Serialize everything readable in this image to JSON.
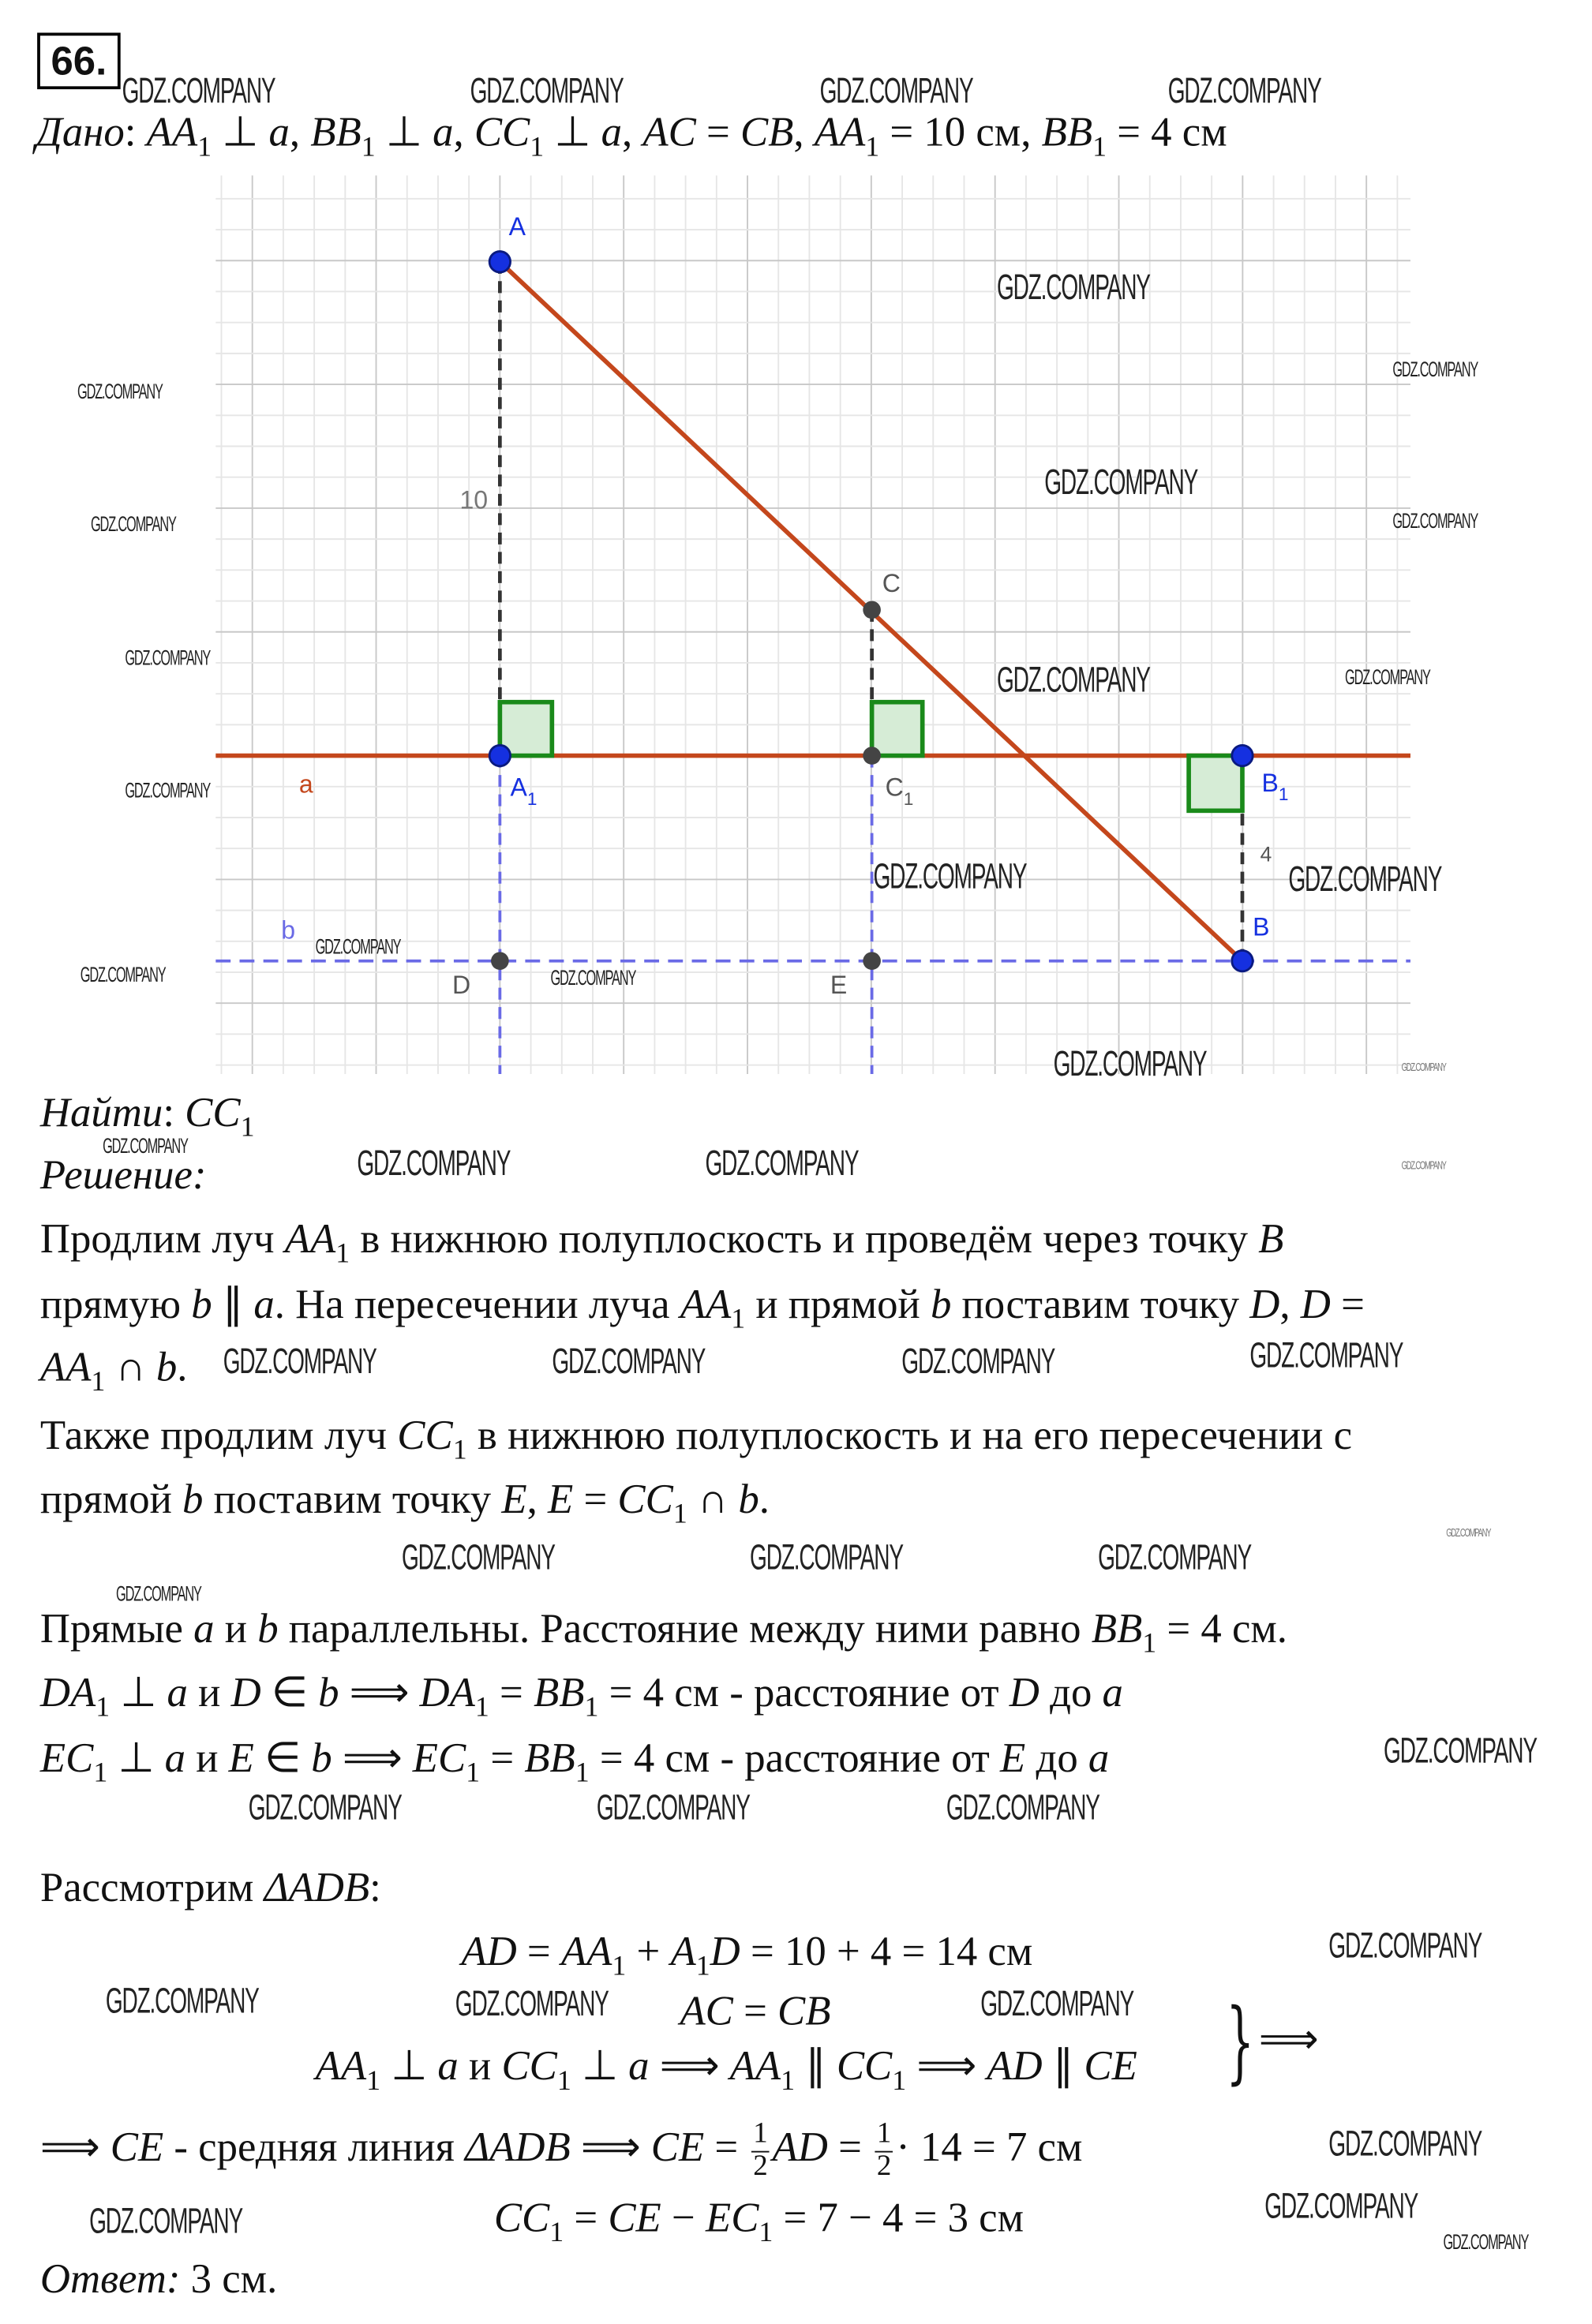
{
  "problem_number": "66.",
  "watermark": "GDZ.COMPANY",
  "given": [
    [
      "Дано",
      "i"
    ],
    [
      ": ",
      ""
    ],
    [
      "AA",
      "i"
    ],
    [
      "1",
      "sub"
    ],
    [
      " ⊥ ",
      ""
    ],
    [
      "a",
      "i"
    ],
    [
      ", ",
      ""
    ],
    [
      "BB",
      "i"
    ],
    [
      "1",
      "sub"
    ],
    [
      " ⊥ ",
      ""
    ],
    [
      "a",
      "i"
    ],
    [
      ", ",
      ""
    ],
    [
      "CC",
      "i"
    ],
    [
      "1",
      "sub"
    ],
    [
      " ⊥ ",
      ""
    ],
    [
      "a",
      "i"
    ],
    [
      ", ",
      ""
    ],
    [
      "AC",
      "i"
    ],
    [
      " = ",
      ""
    ],
    [
      "CB",
      "i"
    ],
    [
      ", ",
      ""
    ],
    [
      "AA",
      "i"
    ],
    [
      "1",
      "sub"
    ],
    [
      " = 10 см, ",
      ""
    ],
    [
      "BB",
      "i"
    ],
    [
      "1",
      "sub"
    ],
    [
      " = 4 см",
      ""
    ]
  ],
  "diagram": {
    "labels": {
      "A": "A",
      "A1": "A",
      "A1_sub": "1",
      "C": "C",
      "C1": "C",
      "C1_sub": "1",
      "B1": "B",
      "B1_sub": "1",
      "B": "B",
      "D": "D",
      "E": "E",
      "a": "a",
      "b": "b",
      "len10": "10",
      "len4": "4"
    },
    "colors": {
      "main_line": "#c4471c",
      "points_blue": "#1530e0",
      "points_gray": "#444444",
      "right_angle": "#1a8a1a",
      "line_b": "#6a6ae6"
    }
  },
  "find": [
    [
      "Найти",
      "i"
    ],
    [
      ": ",
      ""
    ],
    [
      "CC",
      "i"
    ],
    [
      "1",
      "sub"
    ]
  ],
  "solution_label": [
    [
      "Решение:",
      "i"
    ]
  ],
  "paragraphs": [
    [
      [
        "Продлим луч ",
        ""
      ],
      [
        "AA",
        "i"
      ],
      [
        "1",
        "sub"
      ],
      [
        " в нижнюю полуплоскость и проведём через точку ",
        ""
      ],
      [
        "B",
        "i"
      ]
    ],
    [
      [
        "прямую ",
        ""
      ],
      [
        "b",
        "i"
      ],
      [
        " ∥ ",
        ""
      ],
      [
        "a",
        "i"
      ],
      [
        ". На пересечении луча ",
        ""
      ],
      [
        "AA",
        "i"
      ],
      [
        "1",
        "sub"
      ],
      [
        " и прямой ",
        ""
      ],
      [
        "b",
        "i"
      ],
      [
        " поставим точку ",
        ""
      ],
      [
        "D",
        "i"
      ],
      [
        ", ",
        ""
      ],
      [
        "D",
        "i"
      ],
      [
        " =",
        ""
      ]
    ],
    [
      [
        "AA",
        "i"
      ],
      [
        "1",
        "sub"
      ],
      [
        " ∩ ",
        ""
      ],
      [
        "b",
        "i"
      ],
      [
        ".",
        ""
      ]
    ],
    [
      [
        "Также продлим луч ",
        ""
      ],
      [
        "CC",
        "i"
      ],
      [
        "1",
        "sub"
      ],
      [
        " в нижнюю полуплоскость и на его пересечении с",
        ""
      ]
    ],
    [
      [
        "прямой ",
        ""
      ],
      [
        "b",
        "i"
      ],
      [
        " поставим точку ",
        ""
      ],
      [
        "E",
        "i"
      ],
      [
        ", ",
        ""
      ],
      [
        "E",
        "i"
      ],
      [
        " = ",
        ""
      ],
      [
        "CC",
        "i"
      ],
      [
        "1",
        "sub"
      ],
      [
        " ∩ ",
        ""
      ],
      [
        "b",
        "i"
      ],
      [
        ".",
        ""
      ]
    ],
    [
      [
        "Прямые ",
        ""
      ],
      [
        "a",
        "i"
      ],
      [
        " и ",
        ""
      ],
      [
        "b",
        "i"
      ],
      [
        " параллельны. Расстояние между ними равно ",
        ""
      ],
      [
        "BB",
        "i"
      ],
      [
        "1",
        "sub"
      ],
      [
        " = 4 см.",
        ""
      ]
    ],
    [
      [
        "DA",
        "i"
      ],
      [
        "1",
        "sub"
      ],
      [
        " ⊥ ",
        ""
      ],
      [
        "a",
        "i"
      ],
      [
        " и ",
        ""
      ],
      [
        "D",
        "i"
      ],
      [
        " ∈ ",
        ""
      ],
      [
        "b",
        "i"
      ],
      [
        " ⟹ ",
        ""
      ],
      [
        "DA",
        "i"
      ],
      [
        "1",
        "sub"
      ],
      [
        " = ",
        ""
      ],
      [
        "BB",
        "i"
      ],
      [
        "1",
        "sub"
      ],
      [
        " = 4 см - расстояние от ",
        ""
      ],
      [
        "D",
        "i"
      ],
      [
        " до ",
        ""
      ],
      [
        "a",
        "i"
      ]
    ],
    [
      [
        "EC",
        "i"
      ],
      [
        "1",
        "sub"
      ],
      [
        " ⊥ ",
        ""
      ],
      [
        "a",
        "i"
      ],
      [
        " и ",
        ""
      ],
      [
        "E",
        "i"
      ],
      [
        " ∈ ",
        ""
      ],
      [
        "b",
        "i"
      ],
      [
        " ⟹ ",
        ""
      ],
      [
        "EC",
        "i"
      ],
      [
        "1",
        "sub"
      ],
      [
        " = ",
        ""
      ],
      [
        "BB",
        "i"
      ],
      [
        "1",
        "sub"
      ],
      [
        " = 4 см - расстояние от ",
        ""
      ],
      [
        "E",
        "i"
      ],
      [
        " до ",
        ""
      ],
      [
        "a",
        "i"
      ]
    ],
    [
      [
        "Рассмотрим ",
        ""
      ],
      [
        "ΔADB",
        "i"
      ],
      [
        ":",
        ""
      ]
    ]
  ],
  "system": [
    [
      [
        "AD",
        "i"
      ],
      [
        " = ",
        ""
      ],
      [
        "AA",
        "i"
      ],
      [
        "1",
        "sub"
      ],
      [
        " + ",
        ""
      ],
      [
        "A",
        "i"
      ],
      [
        "1",
        "sub"
      ],
      [
        "D",
        "i"
      ],
      [
        " = 10 + 4 = 14 см",
        ""
      ]
    ],
    [
      [
        "AC",
        "i"
      ],
      [
        " = ",
        ""
      ],
      [
        "CB",
        "i"
      ]
    ],
    [
      [
        "AA",
        "i"
      ],
      [
        "1",
        "sub"
      ],
      [
        " ⊥ ",
        ""
      ],
      [
        "a",
        "i"
      ],
      [
        " и ",
        ""
      ],
      [
        "CC",
        "i"
      ],
      [
        "1",
        "sub"
      ],
      [
        " ⊥ ",
        ""
      ],
      [
        "a",
        "i"
      ],
      [
        " ⟹ ",
        ""
      ],
      [
        "AA",
        "i"
      ],
      [
        "1",
        "sub"
      ],
      [
        " ∥ ",
        ""
      ],
      [
        "CC",
        "i"
      ],
      [
        "1",
        "sub"
      ],
      [
        " ⟹ ",
        ""
      ],
      [
        "AD",
        "i"
      ],
      [
        " ∥ ",
        ""
      ],
      [
        "CE",
        "i"
      ]
    ]
  ],
  "system_result": "⟹",
  "midline": {
    "part1": [
      [
        "⟹ ",
        ""
      ],
      [
        "CE",
        "i"
      ],
      [
        " - средняя линия ",
        ""
      ],
      [
        "ΔADB",
        "i"
      ],
      [
        " ⟹ ",
        ""
      ],
      [
        "CE",
        "i"
      ],
      [
        " = ",
        ""
      ]
    ],
    "frac_num": "1",
    "frac_den": "2",
    "part2": [
      [
        "AD",
        "i"
      ],
      [
        " = ",
        ""
      ]
    ],
    "part3": [
      [
        "· 14 = 7 см",
        ""
      ]
    ]
  },
  "final_calc": [
    [
      "CC",
      "i"
    ],
    [
      "1",
      "sub"
    ],
    [
      " = ",
      ""
    ],
    [
      "CE",
      "i"
    ],
    [
      " − ",
      ""
    ],
    [
      "EC",
      "i"
    ],
    [
      "1",
      "sub"
    ],
    [
      " = 7 − 4 = 3 см",
      ""
    ]
  ],
  "answer": [
    [
      "Ответ:",
      "i"
    ],
    [
      " 3 см.",
      ""
    ]
  ]
}
